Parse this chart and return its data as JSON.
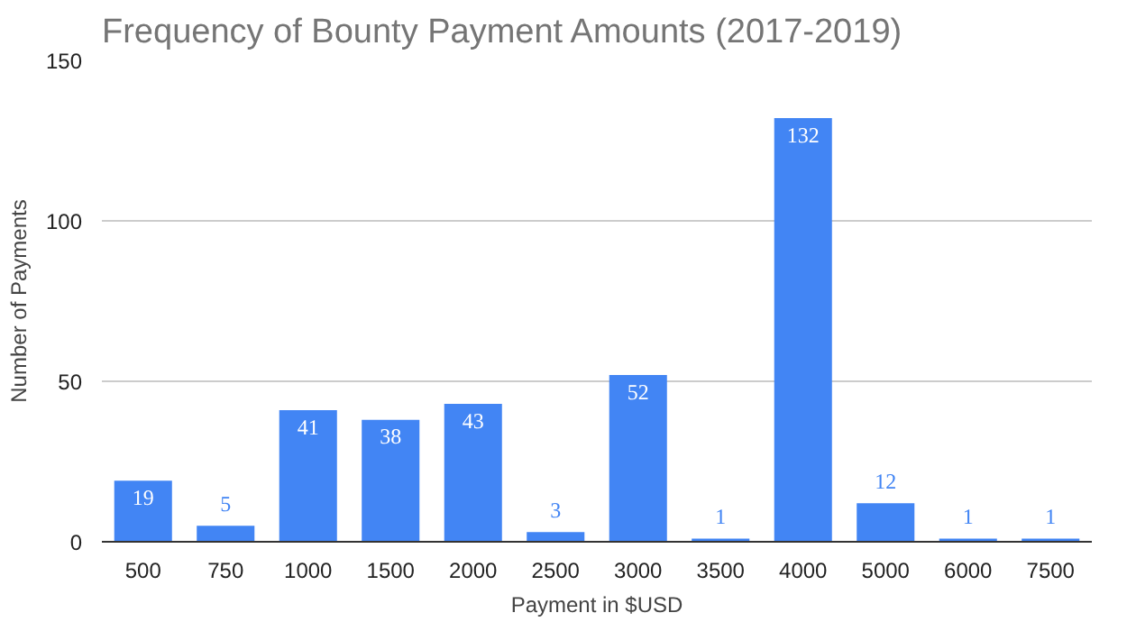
{
  "chart_data": {
    "type": "bar",
    "title": "Frequency of Bounty Payment Amounts (2017-2019)",
    "xlabel": "Payment in $USD",
    "ylabel": "Number of Payments",
    "categories": [
      "500",
      "750",
      "1000",
      "1500",
      "2000",
      "2500",
      "3000",
      "3500",
      "4000",
      "5000",
      "6000",
      "7500"
    ],
    "values": [
      19,
      5,
      41,
      38,
      43,
      3,
      52,
      1,
      132,
      12,
      1,
      1
    ],
    "color": "#4285f4",
    "ylim": [
      0,
      150
    ],
    "yticks": [
      0,
      50,
      100,
      150
    ],
    "grid": "y",
    "data_labels": true
  }
}
